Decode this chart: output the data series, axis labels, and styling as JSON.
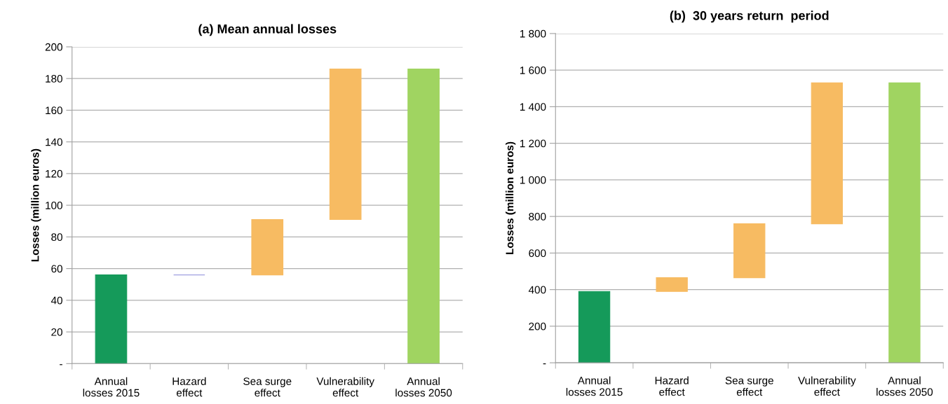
{
  "chart_data": [
    {
      "type": "bar",
      "title": "(a) Mean annual losses",
      "ylabel": "Losses (million euros)",
      "categories": [
        "Annual\nlosses 2015",
        "Hazard\neffect",
        "Sea surge\neffect",
        "Vulnerability\neffect",
        "Annual\nlosses 2050"
      ],
      "values": [
        56,
        0,
        35,
        95,
        186
      ],
      "base": [
        0,
        56,
        56,
        91,
        0
      ],
      "colors": [
        "#159a5a",
        "#a0a0e0",
        "#f7bb62",
        "#f7bb62",
        "#a0d461"
      ],
      "ylim": [
        0,
        200
      ],
      "yticks": [
        {
          "value": 0,
          "label": "-"
        },
        20,
        40,
        60,
        80,
        100,
        120,
        140,
        160,
        180,
        200
      ],
      "grid": "y"
    },
    {
      "type": "bar",
      "title": "(b)  30 years return  period",
      "ylabel": "Losses (million euros)",
      "categories": [
        "Annual\nlosses 2015",
        "Hazard\neffect",
        "Sea surge\neffect",
        "Vulnerability\neffect",
        "Annual\nlosses 2050"
      ],
      "values": [
        390,
        75,
        295,
        770,
        1530
      ],
      "base": [
        0,
        390,
        465,
        760,
        0
      ],
      "colors": [
        "#159a5a",
        "#f7bb62",
        "#f7bb62",
        "#f7bb62",
        "#a0d461"
      ],
      "ylim": [
        0,
        1800
      ],
      "yticks": [
        {
          "value": 0,
          "label": "-"
        },
        200,
        400,
        600,
        800,
        {
          "value": 1000,
          "label": "1 000"
        },
        {
          "value": 1200,
          "label": "1 200"
        },
        {
          "value": 1400,
          "label": "1 400"
        },
        {
          "value": 1600,
          "label": "1 600"
        },
        {
          "value": 1800,
          "label": "1 800"
        }
      ],
      "grid": "y"
    }
  ]
}
